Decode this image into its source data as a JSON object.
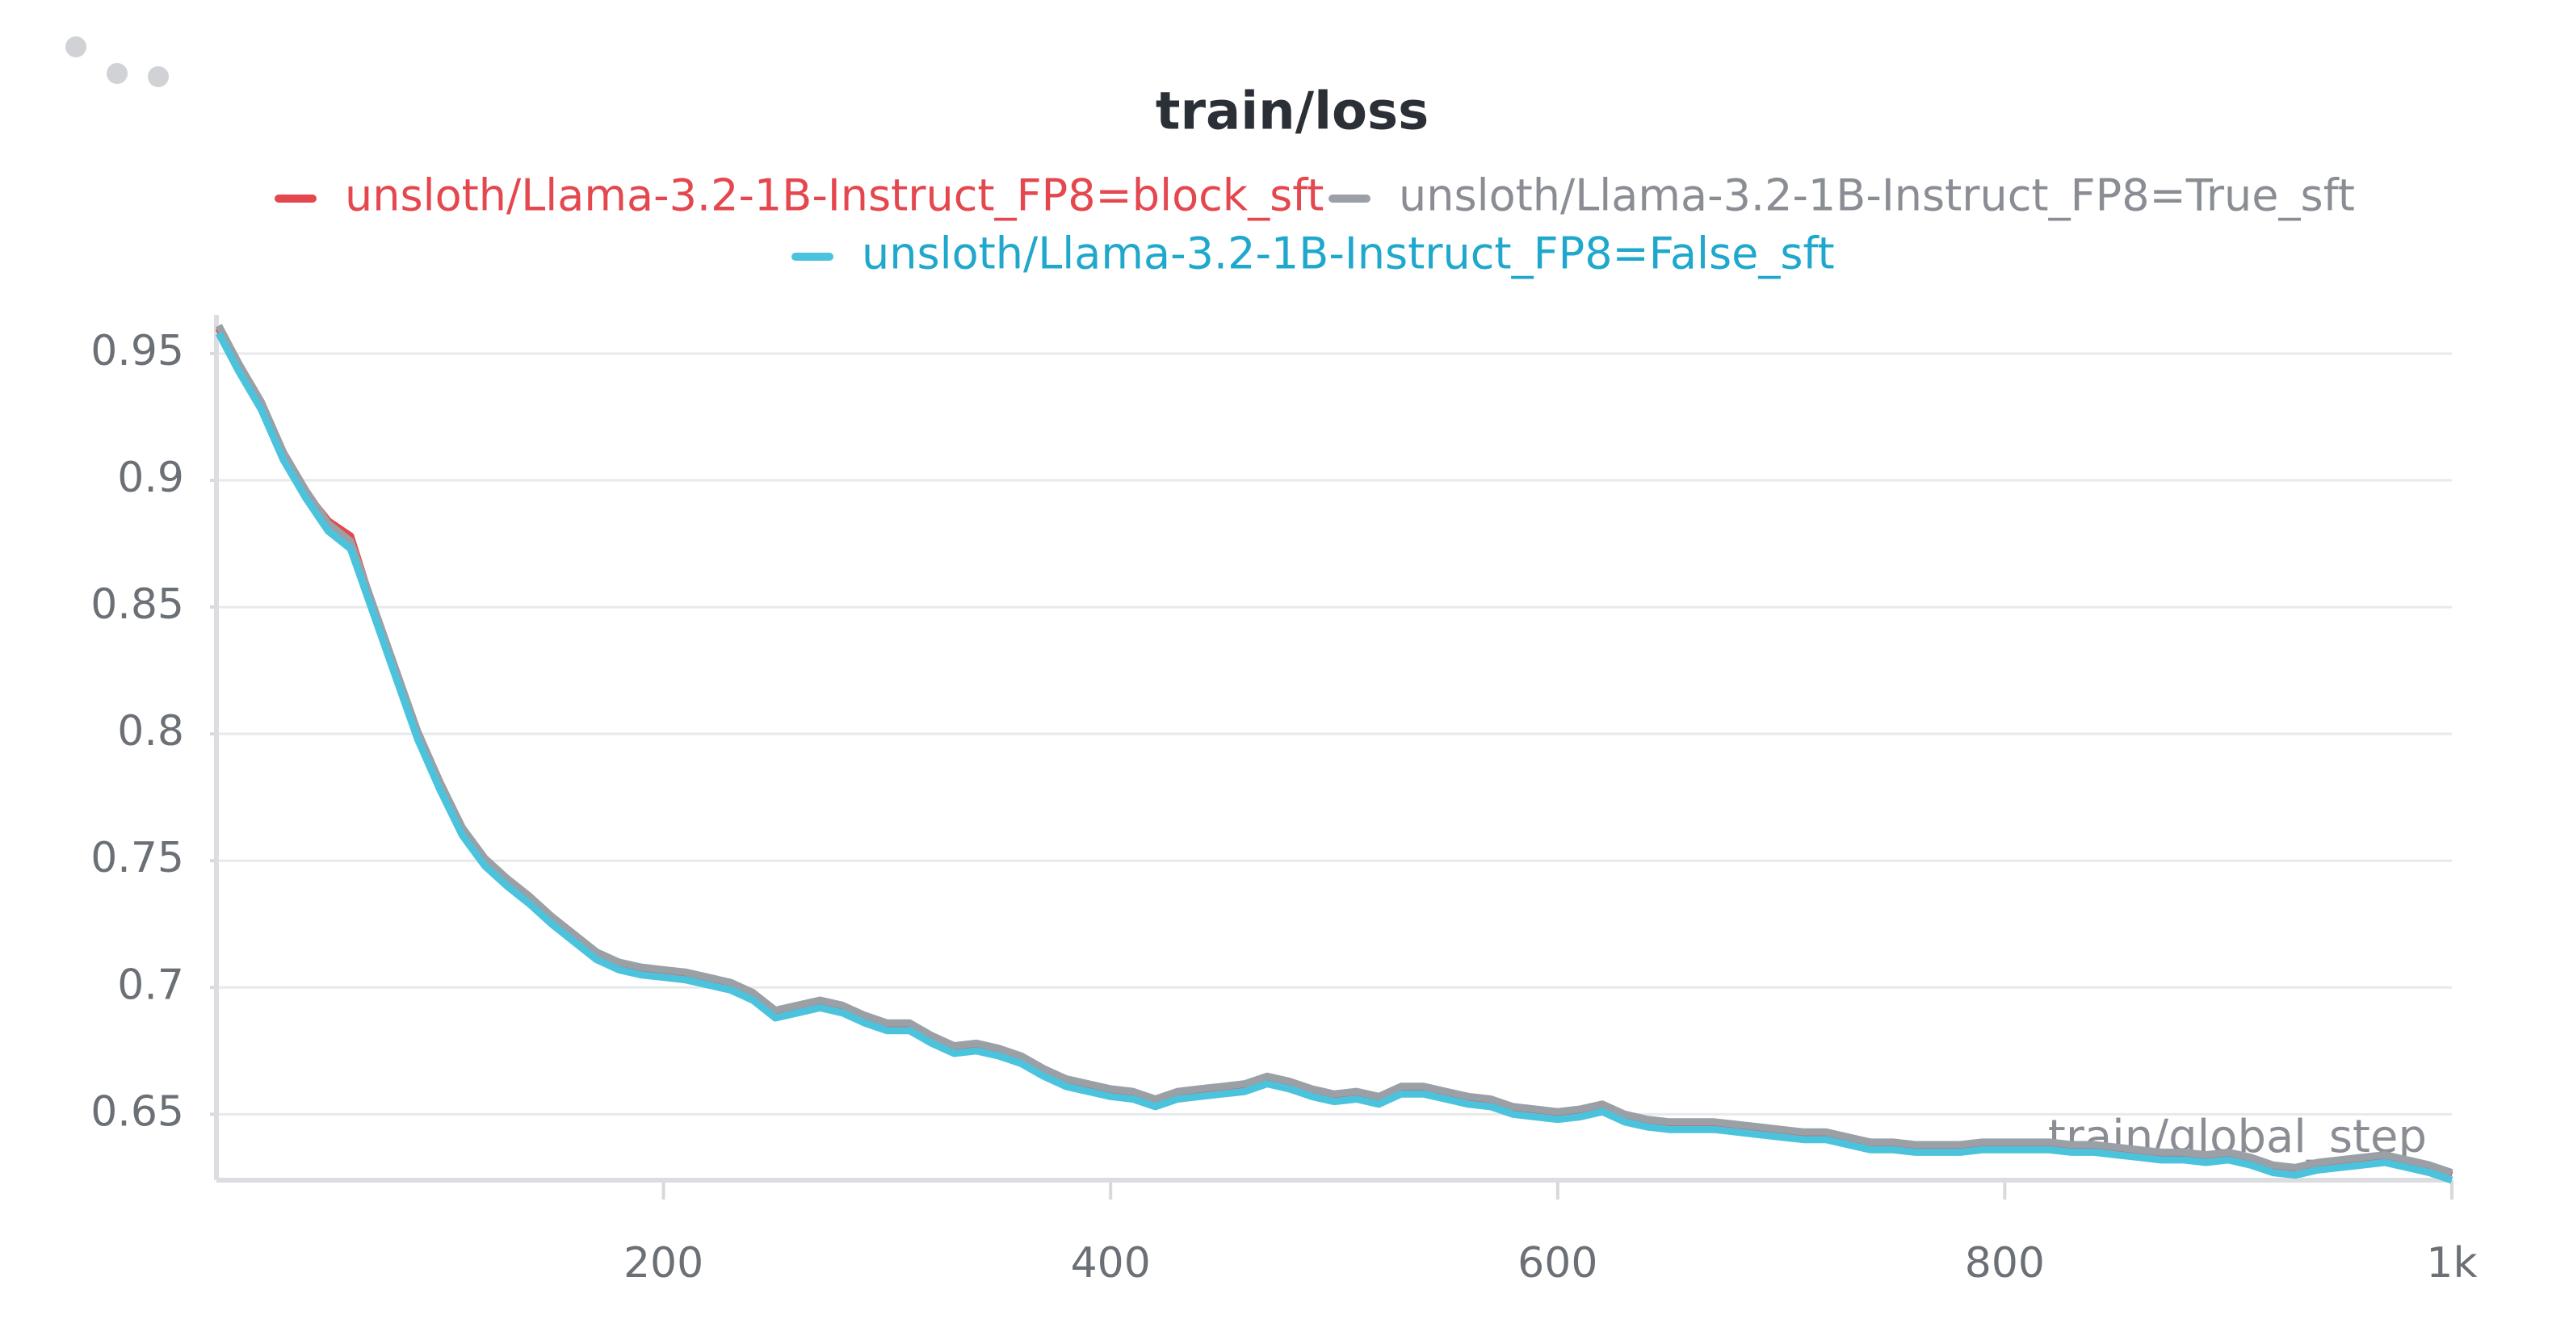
{
  "chart_data": {
    "type": "line",
    "title": "train/loss",
    "xlabel": "train/global_step",
    "x": [
      1,
      10,
      20,
      30,
      40,
      50,
      60,
      70,
      80,
      90,
      100,
      110,
      120,
      130,
      140,
      150,
      160,
      170,
      180,
      190,
      200,
      210,
      220,
      230,
      240,
      250,
      260,
      270,
      280,
      290,
      300,
      310,
      320,
      330,
      340,
      350,
      360,
      370,
      380,
      390,
      400,
      410,
      420,
      430,
      440,
      450,
      460,
      470,
      480,
      490,
      500,
      510,
      520,
      530,
      540,
      550,
      560,
      570,
      580,
      590,
      600,
      610,
      620,
      630,
      640,
      650,
      660,
      670,
      680,
      690,
      700,
      710,
      720,
      730,
      740,
      750,
      760,
      770,
      780,
      790,
      800,
      810,
      820,
      830,
      840,
      850,
      860,
      870,
      880,
      890,
      900,
      910,
      920,
      930,
      940,
      950,
      960,
      970,
      980,
      990,
      1000
    ],
    "series": [
      {
        "name": "unsloth/Llama-3.2-1B-Instruct_FP8=block_sft",
        "color": "#e5474f",
        "values": [
          0.96,
          0.945,
          0.93,
          0.91,
          0.895,
          0.884,
          0.878,
          0.85,
          0.825,
          0.8,
          0.78,
          0.762,
          0.75,
          0.742,
          0.735,
          0.727,
          0.72,
          0.713,
          0.709,
          0.707,
          0.706,
          0.705,
          0.703,
          0.701,
          0.697,
          0.69,
          0.692,
          0.694,
          0.692,
          0.688,
          0.685,
          0.685,
          0.68,
          0.676,
          0.677,
          0.675,
          0.672,
          0.667,
          0.663,
          0.661,
          0.659,
          0.658,
          0.655,
          0.658,
          0.659,
          0.66,
          0.661,
          0.664,
          0.662,
          0.659,
          0.657,
          0.658,
          0.656,
          0.66,
          0.66,
          0.658,
          0.656,
          0.655,
          0.652,
          0.651,
          0.65,
          0.651,
          0.653,
          0.649,
          0.647,
          0.646,
          0.646,
          0.646,
          0.645,
          0.644,
          0.643,
          0.642,
          0.642,
          0.64,
          0.638,
          0.638,
          0.637,
          0.637,
          0.637,
          0.638,
          0.638,
          0.638,
          0.638,
          0.637,
          0.637,
          0.636,
          0.635,
          0.634,
          0.634,
          0.633,
          0.634,
          0.632,
          0.629,
          0.628,
          0.63,
          0.631,
          0.632,
          0.633,
          0.631,
          0.629,
          0.626
        ]
      },
      {
        "name": "unsloth/Llama-3.2-1B-Instruct_FP8=True_sft",
        "color": "#9aa0a6",
        "values": [
          0.961,
          0.946,
          0.931,
          0.911,
          0.896,
          0.883,
          0.876,
          0.851,
          0.826,
          0.801,
          0.781,
          0.763,
          0.751,
          0.743,
          0.736,
          0.728,
          0.721,
          0.714,
          0.71,
          0.708,
          0.707,
          0.706,
          0.704,
          0.702,
          0.698,
          0.691,
          0.693,
          0.695,
          0.693,
          0.689,
          0.686,
          0.686,
          0.681,
          0.677,
          0.678,
          0.676,
          0.673,
          0.668,
          0.664,
          0.662,
          0.66,
          0.659,
          0.656,
          0.659,
          0.66,
          0.661,
          0.662,
          0.665,
          0.663,
          0.66,
          0.658,
          0.659,
          0.657,
          0.661,
          0.661,
          0.659,
          0.657,
          0.656,
          0.653,
          0.652,
          0.651,
          0.652,
          0.654,
          0.65,
          0.648,
          0.647,
          0.647,
          0.647,
          0.646,
          0.645,
          0.644,
          0.643,
          0.643,
          0.641,
          0.639,
          0.639,
          0.638,
          0.638,
          0.638,
          0.639,
          0.639,
          0.639,
          0.639,
          0.638,
          0.638,
          0.637,
          0.636,
          0.635,
          0.635,
          0.634,
          0.635,
          0.633,
          0.63,
          0.629,
          0.631,
          0.632,
          0.633,
          0.634,
          0.632,
          0.63,
          0.627
        ]
      },
      {
        "name": "unsloth/Llama-3.2-1B-Instruct_FP8=False_sft",
        "color": "#4cc3dc",
        "values": [
          0.958,
          0.943,
          0.928,
          0.908,
          0.893,
          0.88,
          0.873,
          0.848,
          0.823,
          0.798,
          0.778,
          0.76,
          0.748,
          0.74,
          0.733,
          0.725,
          0.718,
          0.711,
          0.707,
          0.705,
          0.704,
          0.703,
          0.701,
          0.699,
          0.695,
          0.688,
          0.69,
          0.692,
          0.69,
          0.686,
          0.683,
          0.683,
          0.678,
          0.674,
          0.675,
          0.673,
          0.67,
          0.665,
          0.661,
          0.659,
          0.657,
          0.656,
          0.653,
          0.656,
          0.657,
          0.658,
          0.659,
          0.662,
          0.66,
          0.657,
          0.655,
          0.656,
          0.654,
          0.658,
          0.658,
          0.656,
          0.654,
          0.653,
          0.65,
          0.649,
          0.648,
          0.649,
          0.651,
          0.647,
          0.645,
          0.644,
          0.644,
          0.644,
          0.643,
          0.642,
          0.641,
          0.64,
          0.64,
          0.638,
          0.636,
          0.636,
          0.635,
          0.635,
          0.635,
          0.636,
          0.636,
          0.636,
          0.636,
          0.635,
          0.635,
          0.634,
          0.633,
          0.632,
          0.632,
          0.631,
          0.632,
          0.63,
          0.627,
          0.626,
          0.628,
          0.629,
          0.63,
          0.631,
          0.629,
          0.627,
          0.624
        ]
      }
    ],
    "xlim": [
      0,
      1000
    ],
    "xticks": [
      200,
      400,
      600,
      800,
      {
        "value": 1000,
        "label": "1k"
      }
    ],
    "ylim": [
      0.624,
      0.964
    ],
    "yticks": [
      0.65,
      0.7,
      0.75,
      0.8,
      0.85,
      0.9,
      0.95
    ],
    "grid": true
  }
}
